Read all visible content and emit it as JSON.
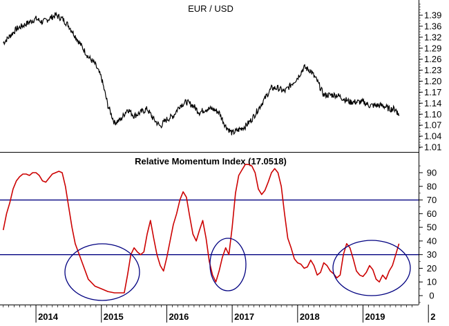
{
  "chart_data": [
    {
      "type": "line",
      "title": "EUR / USD",
      "xlabel": "",
      "ylabel": "",
      "ylim": [
        1.0,
        1.43
      ],
      "yticks": [
        "1.39",
        "1.36",
        "1.32",
        "1.29",
        "1.26",
        "1.23",
        "1.20",
        "1.17",
        "1.14",
        "1.10",
        "1.07",
        "1.04",
        "1.01"
      ],
      "xticks": [
        "2014",
        "2015",
        "2016",
        "2017",
        "2018",
        "2019",
        "2"
      ],
      "grid": false,
      "series": [
        {
          "color": "#000000",
          "x": [
            2013.5,
            2013.6,
            2013.7,
            2013.8,
            2013.9,
            2014.0,
            2014.1,
            2014.2,
            2014.3,
            2014.4,
            2014.5,
            2014.6,
            2014.7,
            2014.8,
            2014.9,
            2015.0,
            2015.1,
            2015.2,
            2015.3,
            2015.4,
            2015.5,
            2015.6,
            2015.7,
            2015.8,
            2015.9,
            2016.0,
            2016.1,
            2016.2,
            2016.3,
            2016.4,
            2016.5,
            2016.6,
            2016.7,
            2016.8,
            2016.9,
            2017.0,
            2017.1,
            2017.2,
            2017.3,
            2017.4,
            2017.5,
            2017.6,
            2017.7,
            2017.8,
            2017.9,
            2018.0,
            2018.1,
            2018.2,
            2018.3,
            2018.4,
            2018.5,
            2018.6,
            2018.7,
            2018.8,
            2018.9,
            2019.0,
            2019.1,
            2019.2,
            2019.3,
            2019.4,
            2019.5,
            2019.55
          ],
          "y": [
            1.31,
            1.33,
            1.35,
            1.36,
            1.37,
            1.38,
            1.37,
            1.38,
            1.39,
            1.38,
            1.36,
            1.33,
            1.3,
            1.27,
            1.25,
            1.21,
            1.13,
            1.08,
            1.09,
            1.12,
            1.1,
            1.11,
            1.12,
            1.09,
            1.07,
            1.09,
            1.1,
            1.13,
            1.14,
            1.13,
            1.11,
            1.12,
            1.12,
            1.11,
            1.07,
            1.05,
            1.06,
            1.07,
            1.09,
            1.12,
            1.15,
            1.18,
            1.18,
            1.17,
            1.19,
            1.21,
            1.24,
            1.23,
            1.2,
            1.16,
            1.16,
            1.16,
            1.15,
            1.14,
            1.14,
            1.14,
            1.13,
            1.13,
            1.13,
            1.12,
            1.12,
            1.1
          ]
        }
      ]
    },
    {
      "type": "line",
      "title": "Relative Momentum Index (17.0518)",
      "xlabel": "",
      "ylabel": "",
      "ylim": [
        -8,
        100
      ],
      "yticks": [
        "90",
        "80",
        "70",
        "60",
        "50",
        "40",
        "30",
        "20",
        "10",
        "0"
      ],
      "xticks": [
        "2014",
        "2015",
        "2016",
        "2017",
        "2018",
        "2019",
        "2"
      ],
      "grid": false,
      "reference_lines": [
        70,
        30
      ],
      "reference_line_color": "#000080",
      "series": [
        {
          "color": "#cc0000",
          "x": [
            2013.5,
            2013.55,
            2013.6,
            2013.65,
            2013.7,
            2013.75,
            2013.8,
            2013.85,
            2013.9,
            2013.95,
            2014.0,
            2014.05,
            2014.1,
            2014.15,
            2014.2,
            2014.25,
            2014.3,
            2014.35,
            2014.4,
            2014.45,
            2014.5,
            2014.55,
            2014.6,
            2014.7,
            2014.8,
            2014.9,
            2015.0,
            2015.1,
            2015.2,
            2015.3,
            2015.35,
            2015.4,
            2015.45,
            2015.5,
            2015.55,
            2015.6,
            2015.65,
            2015.7,
            2015.75,
            2015.8,
            2015.85,
            2015.9,
            2015.95,
            2016.0,
            2016.05,
            2016.1,
            2016.15,
            2016.2,
            2016.25,
            2016.3,
            2016.35,
            2016.4,
            2016.45,
            2016.5,
            2016.55,
            2016.6,
            2016.65,
            2016.7,
            2016.75,
            2016.8,
            2016.85,
            2016.9,
            2016.95,
            2017.0,
            2017.05,
            2017.1,
            2017.15,
            2017.2,
            2017.25,
            2017.3,
            2017.35,
            2017.4,
            2017.45,
            2017.5,
            2017.55,
            2017.6,
            2017.65,
            2017.7,
            2017.75,
            2017.8,
            2017.85,
            2017.9,
            2017.95,
            2018.0,
            2018.05,
            2018.1,
            2018.15,
            2018.2,
            2018.25,
            2018.3,
            2018.35,
            2018.4,
            2018.45,
            2018.5,
            2018.55,
            2018.6,
            2018.65,
            2018.7,
            2018.75,
            2018.8,
            2018.85,
            2018.9,
            2018.95,
            2019.0,
            2019.05,
            2019.1,
            2019.15,
            2019.2,
            2019.25,
            2019.3,
            2019.35,
            2019.4,
            2019.45,
            2019.5,
            2019.55
          ],
          "y": [
            48,
            60,
            68,
            78,
            84,
            87,
            89,
            89,
            88,
            90,
            90,
            88,
            84,
            83,
            86,
            89,
            90,
            91,
            90,
            80,
            65,
            50,
            38,
            25,
            12,
            7,
            5,
            3,
            2,
            2,
            2,
            15,
            30,
            35,
            32,
            30,
            32,
            45,
            55,
            42,
            30,
            22,
            18,
            28,
            40,
            52,
            60,
            70,
            76,
            72,
            58,
            45,
            40,
            48,
            55,
            42,
            25,
            15,
            10,
            18,
            28,
            35,
            30,
            50,
            75,
            88,
            92,
            96,
            96,
            95,
            90,
            78,
            74,
            77,
            83,
            90,
            93,
            90,
            80,
            60,
            42,
            35,
            27,
            24,
            23,
            20,
            21,
            26,
            22,
            15,
            17,
            24,
            22,
            18,
            16,
            13,
            15,
            30,
            38,
            35,
            27,
            18,
            15,
            14,
            17,
            22,
            19,
            12,
            10,
            15,
            12,
            18,
            22,
            30,
            38
          ]
        }
      ]
    }
  ]
}
